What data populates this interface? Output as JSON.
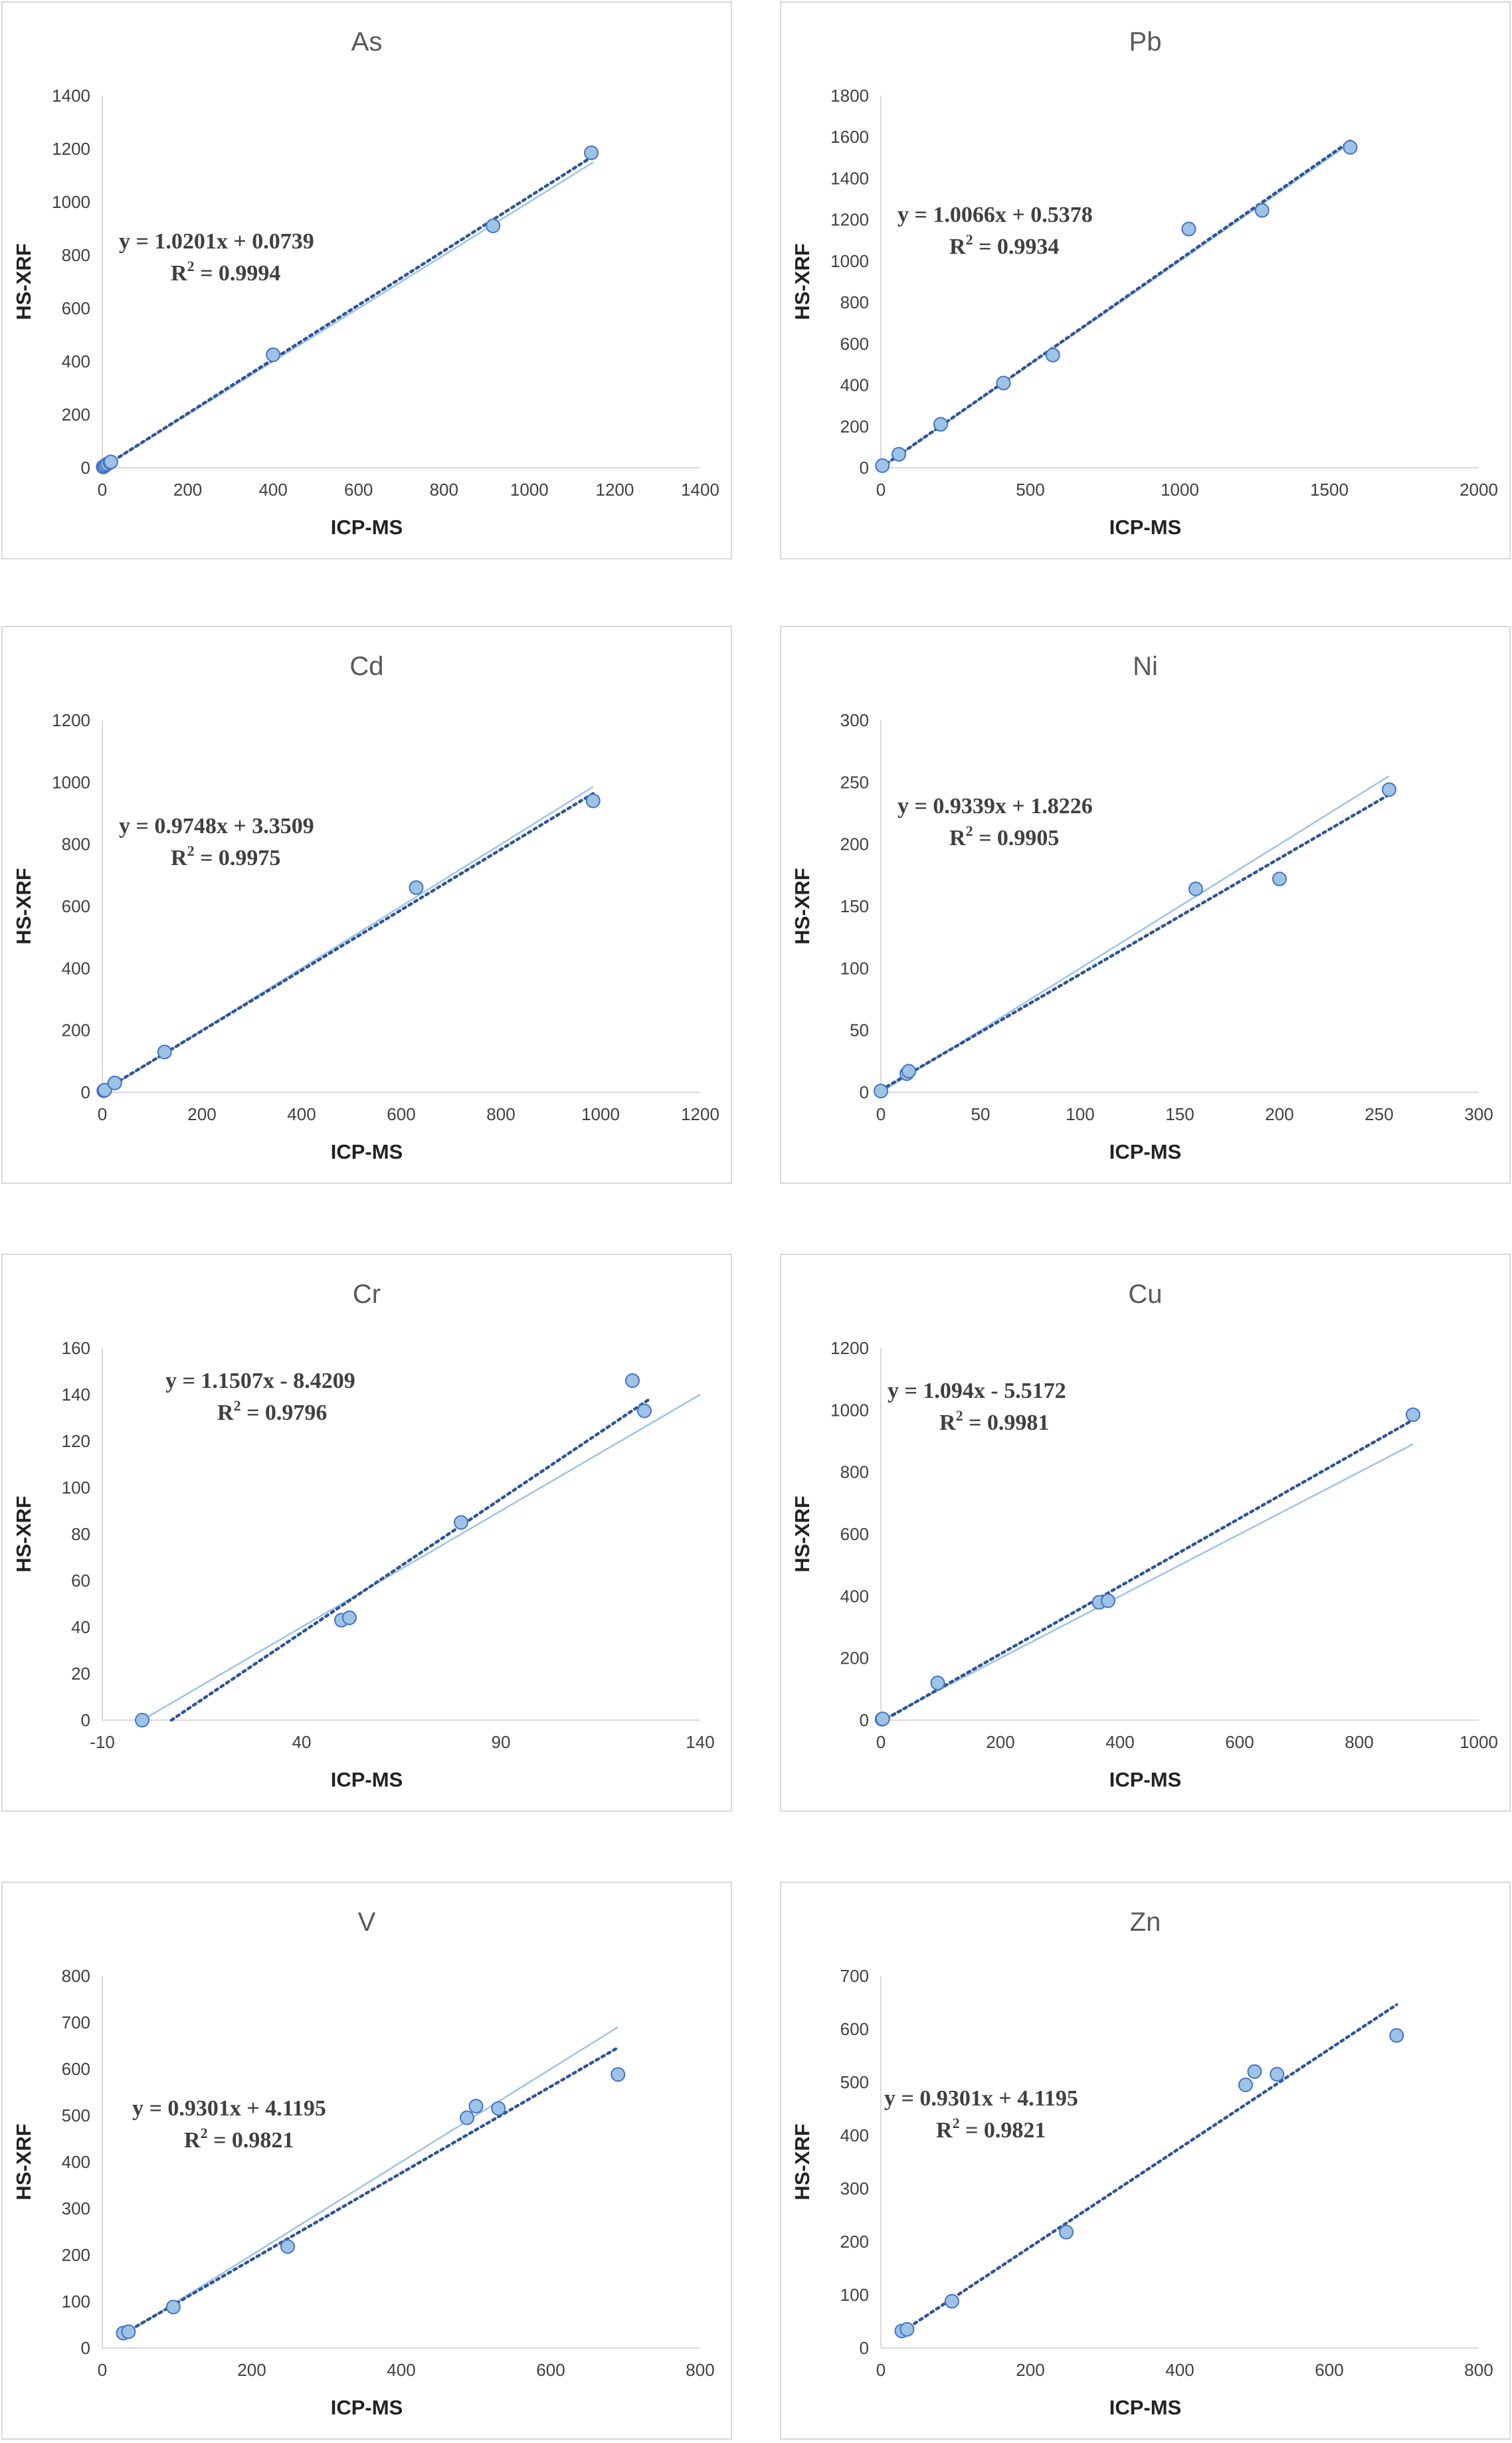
{
  "style": {
    "axis_color": "#d9d9d9",
    "marker_fill": "#9dc3e6",
    "marker_stroke": "#4472c4",
    "trend_dotted": "#2f5597",
    "identity_line": "#9dc3e6",
    "text": "#404040"
  },
  "chart_data": [
    {
      "type": "scatter",
      "title": "As",
      "xlabel": "ICP-MS",
      "ylabel": "HS-XRF",
      "xlim": [
        0,
        1400
      ],
      "ylim": [
        0,
        1400
      ],
      "xticks": [
        0,
        200,
        400,
        600,
        800,
        1000,
        1200,
        1400
      ],
      "yticks": [
        0,
        200,
        400,
        600,
        800,
        1000,
        1200,
        1400
      ],
      "equation": "y = 1.0201x + 0.0739",
      "r2_prefix": "R",
      "r2_value": " = 0.9994",
      "fit": {
        "slope": 1.0201,
        "intercept": 0.0739
      },
      "identity_line": [
        0,
        1150
      ],
      "trend_range": [
        0,
        1150
      ],
      "points": [
        [
          2,
          3
        ],
        [
          5,
          6
        ],
        [
          8,
          10
        ],
        [
          12,
          14
        ],
        [
          18,
          20
        ],
        [
          20,
          22
        ],
        [
          400,
          425
        ],
        [
          915,
          910
        ],
        [
          1145,
          1185
        ]
      ]
    },
    {
      "type": "scatter",
      "title": "Pb",
      "xlabel": "ICP-MS",
      "ylabel": "HS-XRF",
      "xlim": [
        0,
        2000
      ],
      "ylim": [
        0,
        1800
      ],
      "xticks": [
        0,
        500,
        1000,
        1500,
        2000
      ],
      "yticks": [
        0,
        200,
        400,
        600,
        800,
        1000,
        1200,
        1400,
        1600,
        1800
      ],
      "equation": "y = 1.0066x + 0.5378",
      "r2_prefix": "R",
      "r2_value": " = 0.9934",
      "fit": {
        "slope": 1.0066,
        "intercept": 0.5378
      },
      "identity_line": [
        0,
        1570
      ],
      "trend_range": [
        0,
        1570
      ],
      "points": [
        [
          5,
          10
        ],
        [
          60,
          65
        ],
        [
          200,
          210
        ],
        [
          410,
          410
        ],
        [
          575,
          545
        ],
        [
          1030,
          1155
        ],
        [
          1275,
          1245
        ],
        [
          1570,
          1550
        ]
      ]
    },
    {
      "type": "scatter",
      "title": "Cd",
      "xlabel": "ICP-MS",
      "ylabel": "HS-XRF",
      "xlim": [
        0,
        1200
      ],
      "ylim": [
        0,
        1200
      ],
      "xticks": [
        0,
        200,
        400,
        600,
        800,
        1000,
        1200
      ],
      "yticks": [
        0,
        200,
        400,
        600,
        800,
        1000,
        1200
      ],
      "equation": "y = 0.9748x + 3.3509",
      "r2_prefix": "R",
      "r2_value": " = 0.9975",
      "fit": {
        "slope": 0.9748,
        "intercept": 3.3509
      },
      "identity_line": [
        0,
        985
      ],
      "trend_range": [
        0,
        985
      ],
      "points": [
        [
          3,
          5
        ],
        [
          5,
          7
        ],
        [
          25,
          30
        ],
        [
          125,
          130
        ],
        [
          630,
          660
        ],
        [
          985,
          940
        ]
      ]
    },
    {
      "type": "scatter",
      "title": "Ni",
      "xlabel": "ICP-MS",
      "ylabel": "HS-XRF",
      "xlim": [
        0,
        300
      ],
      "ylim": [
        0,
        300
      ],
      "xticks": [
        0,
        50,
        100,
        150,
        200,
        250,
        300
      ],
      "yticks": [
        0,
        50,
        100,
        150,
        200,
        250,
        300
      ],
      "equation": "y = 0.9339x + 1.8226",
      "r2_prefix": "R",
      "r2_value": " = 0.9905",
      "fit": {
        "slope": 0.9339,
        "intercept": 1.8226
      },
      "identity_line": [
        0,
        255
      ],
      "trend_range": [
        0,
        255
      ],
      "points": [
        [
          0,
          1
        ],
        [
          13,
          15
        ],
        [
          14,
          17
        ],
        [
          158,
          164
        ],
        [
          200,
          172
        ],
        [
          255,
          244
        ]
      ]
    },
    {
      "type": "scatter",
      "title": "Cr",
      "xlabel": "ICP-MS",
      "ylabel": "HS-XRF",
      "xlim": [
        -10,
        140
      ],
      "ylim": [
        0,
        160
      ],
      "xticks": [
        -10,
        40,
        90,
        140
      ],
      "yticks": [
        0,
        20,
        40,
        60,
        80,
        100,
        120,
        140,
        160
      ],
      "equation": "y = 1.1507x - 8.4209",
      "r2_prefix": "R",
      "r2_value": " = 0.9796",
      "fit": {
        "slope": 1.1507,
        "intercept": -8.4209
      },
      "identity_line": [
        0,
        140
      ],
      "trend_range": [
        7.32,
        127
      ],
      "points": [
        [
          0,
          0
        ],
        [
          50,
          43
        ],
        [
          52,
          44
        ],
        [
          80,
          85
        ],
        [
          123,
          146
        ],
        [
          126,
          133
        ]
      ]
    },
    {
      "type": "scatter",
      "title": "Cu",
      "xlabel": "ICP-MS",
      "ylabel": "HS-XRF",
      "xlim": [
        0,
        1000
      ],
      "ylim": [
        0,
        1200
      ],
      "xticks": [
        0,
        200,
        400,
        600,
        800,
        1000
      ],
      "yticks": [
        0,
        200,
        400,
        600,
        800,
        1000,
        1200
      ],
      "equation": "y = 1.094x - 5.5172",
      "r2_prefix": "R",
      "r2_value": " = 0.9981",
      "fit": {
        "slope": 1.094,
        "intercept": -5.5172
      },
      "identity_line": [
        0,
        890
      ],
      "trend_range": [
        0,
        890
      ],
      "points": [
        [
          2,
          3
        ],
        [
          3,
          4
        ],
        [
          95,
          120
        ],
        [
          365,
          380
        ],
        [
          380,
          385
        ],
        [
          890,
          985
        ]
      ]
    },
    {
      "type": "scatter",
      "title": "V",
      "xlabel": "ICP-MS",
      "ylabel": "HS-XRF",
      "xlim": [
        0,
        800
      ],
      "ylim": [
        0,
        800
      ],
      "xticks": [
        0,
        200,
        400,
        600,
        800
      ],
      "yticks": [
        0,
        100,
        200,
        300,
        400,
        500,
        600,
        700,
        800
      ],
      "equation": "y = 0.9301x + 4.1195",
      "r2_prefix": "R",
      "r2_value": " = 0.9821",
      "fit": {
        "slope": 0.9301,
        "intercept": 4.1195
      },
      "identity_line": [
        30,
        690
      ],
      "trend_range": [
        30,
        690
      ],
      "points": [
        [
          28,
          32
        ],
        [
          35,
          35
        ],
        [
          95,
          88
        ],
        [
          248,
          218
        ],
        [
          488,
          495
        ],
        [
          500,
          520
        ],
        [
          530,
          515
        ],
        [
          690,
          588
        ]
      ]
    },
    {
      "type": "scatter",
      "title": "Zn",
      "xlabel": "ICP-MS",
      "ylabel": "HS-XRF",
      "xlim": [
        0,
        800
      ],
      "ylim": [
        0,
        700
      ],
      "xticks": [
        0,
        200,
        400,
        600,
        800
      ],
      "yticks": [
        0,
        100,
        200,
        300,
        400,
        500,
        600,
        700
      ],
      "equation": "y = 0.9301x + 4.1195",
      "r2_prefix": "R",
      "r2_value": " = 0.9821",
      "fit": {
        "slope": 0.9301,
        "intercept": 4.1195
      },
      "identity_line": null,
      "trend_range": [
        30,
        690
      ],
      "points": [
        [
          28,
          32
        ],
        [
          35,
          35
        ],
        [
          95,
          88
        ],
        [
          248,
          218
        ],
        [
          488,
          495
        ],
        [
          500,
          520
        ],
        [
          530,
          515
        ],
        [
          690,
          588
        ]
      ]
    }
  ]
}
